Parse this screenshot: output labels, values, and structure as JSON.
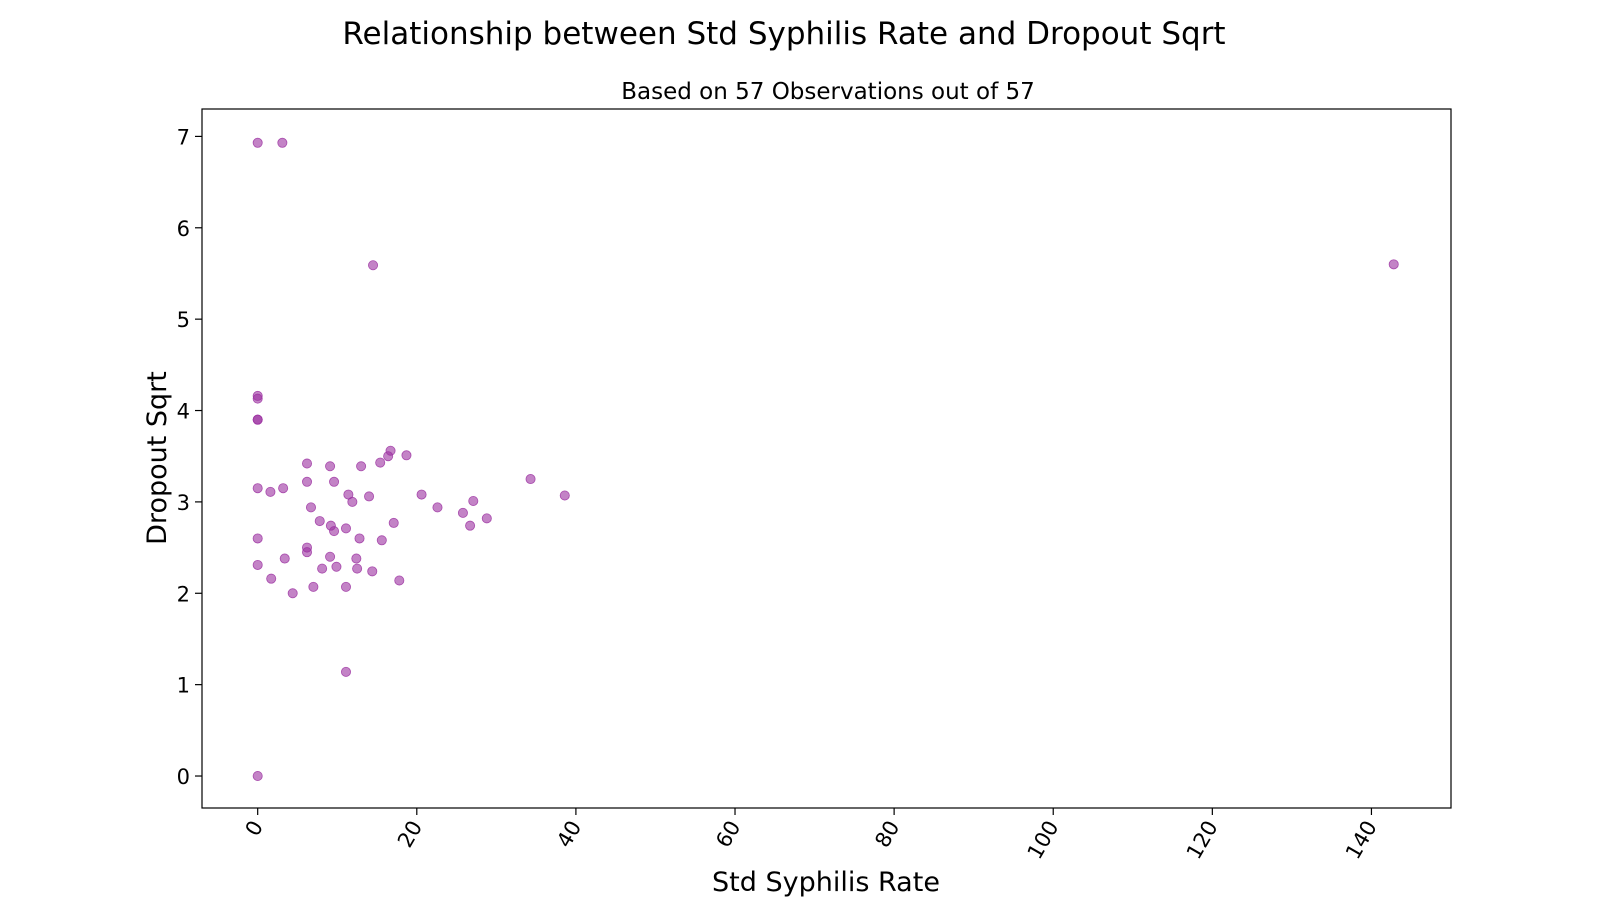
{
  "chart_data": {
    "type": "scatter",
    "title": "Relationship between Std Syphilis Rate and Dropout Sqrt",
    "subtitle": "Based on 57 Observations out of 57",
    "xlabel": "Std Syphilis Rate",
    "ylabel": "Dropout Sqrt",
    "xlim": [
      -7,
      150
    ],
    "ylim": [
      -0.35,
      7.3
    ],
    "xticks": [
      0,
      20,
      40,
      60,
      80,
      100,
      120,
      140
    ],
    "yticks": [
      0,
      1,
      2,
      3,
      4,
      5,
      6,
      7
    ],
    "grid": false,
    "legend": "none",
    "marker_color": "#9b30a0",
    "marker_opacity": 0.6,
    "points": [
      {
        "x": 0.0,
        "y": 6.93
      },
      {
        "x": 3.1,
        "y": 6.93
      },
      {
        "x": 14.5,
        "y": 5.59
      },
      {
        "x": 142.8,
        "y": 5.6
      },
      {
        "x": 0.0,
        "y": 4.16
      },
      {
        "x": 0.0,
        "y": 4.13
      },
      {
        "x": 0.0,
        "y": 3.9
      },
      {
        "x": 0.0,
        "y": 3.9
      },
      {
        "x": 16.7,
        "y": 3.56
      },
      {
        "x": 16.4,
        "y": 3.5
      },
      {
        "x": 18.7,
        "y": 3.51
      },
      {
        "x": 15.4,
        "y": 3.43
      },
      {
        "x": 6.2,
        "y": 3.42
      },
      {
        "x": 9.1,
        "y": 3.39
      },
      {
        "x": 13.0,
        "y": 3.39
      },
      {
        "x": 34.3,
        "y": 3.25
      },
      {
        "x": 6.2,
        "y": 3.22
      },
      {
        "x": 9.6,
        "y": 3.22
      },
      {
        "x": 0.0,
        "y": 3.15
      },
      {
        "x": 3.2,
        "y": 3.15
      },
      {
        "x": 1.6,
        "y": 3.11
      },
      {
        "x": 11.4,
        "y": 3.08
      },
      {
        "x": 20.6,
        "y": 3.08
      },
      {
        "x": 14.0,
        "y": 3.06
      },
      {
        "x": 38.6,
        "y": 3.07
      },
      {
        "x": 11.9,
        "y": 3.0
      },
      {
        "x": 27.1,
        "y": 3.01
      },
      {
        "x": 6.7,
        "y": 2.94
      },
      {
        "x": 22.6,
        "y": 2.94
      },
      {
        "x": 25.8,
        "y": 2.88
      },
      {
        "x": 28.8,
        "y": 2.82
      },
      {
        "x": 7.8,
        "y": 2.79
      },
      {
        "x": 17.1,
        "y": 2.77
      },
      {
        "x": 9.2,
        "y": 2.74
      },
      {
        "x": 26.7,
        "y": 2.74
      },
      {
        "x": 11.1,
        "y": 2.71
      },
      {
        "x": 9.6,
        "y": 2.68
      },
      {
        "x": 0.0,
        "y": 2.6
      },
      {
        "x": 12.8,
        "y": 2.6
      },
      {
        "x": 15.6,
        "y": 2.58
      },
      {
        "x": 6.2,
        "y": 2.5
      },
      {
        "x": 6.2,
        "y": 2.45
      },
      {
        "x": 3.4,
        "y": 2.38
      },
      {
        "x": 9.1,
        "y": 2.4
      },
      {
        "x": 12.4,
        "y": 2.38
      },
      {
        "x": 0.0,
        "y": 2.31
      },
      {
        "x": 9.9,
        "y": 2.29
      },
      {
        "x": 8.1,
        "y": 2.27
      },
      {
        "x": 12.5,
        "y": 2.27
      },
      {
        "x": 14.4,
        "y": 2.24
      },
      {
        "x": 1.7,
        "y": 2.16
      },
      {
        "x": 17.8,
        "y": 2.14
      },
      {
        "x": 7.0,
        "y": 2.07
      },
      {
        "x": 11.1,
        "y": 2.07
      },
      {
        "x": 4.4,
        "y": 2.0
      },
      {
        "x": 11.1,
        "y": 1.14
      },
      {
        "x": 0.0,
        "y": 0.0
      }
    ]
  }
}
